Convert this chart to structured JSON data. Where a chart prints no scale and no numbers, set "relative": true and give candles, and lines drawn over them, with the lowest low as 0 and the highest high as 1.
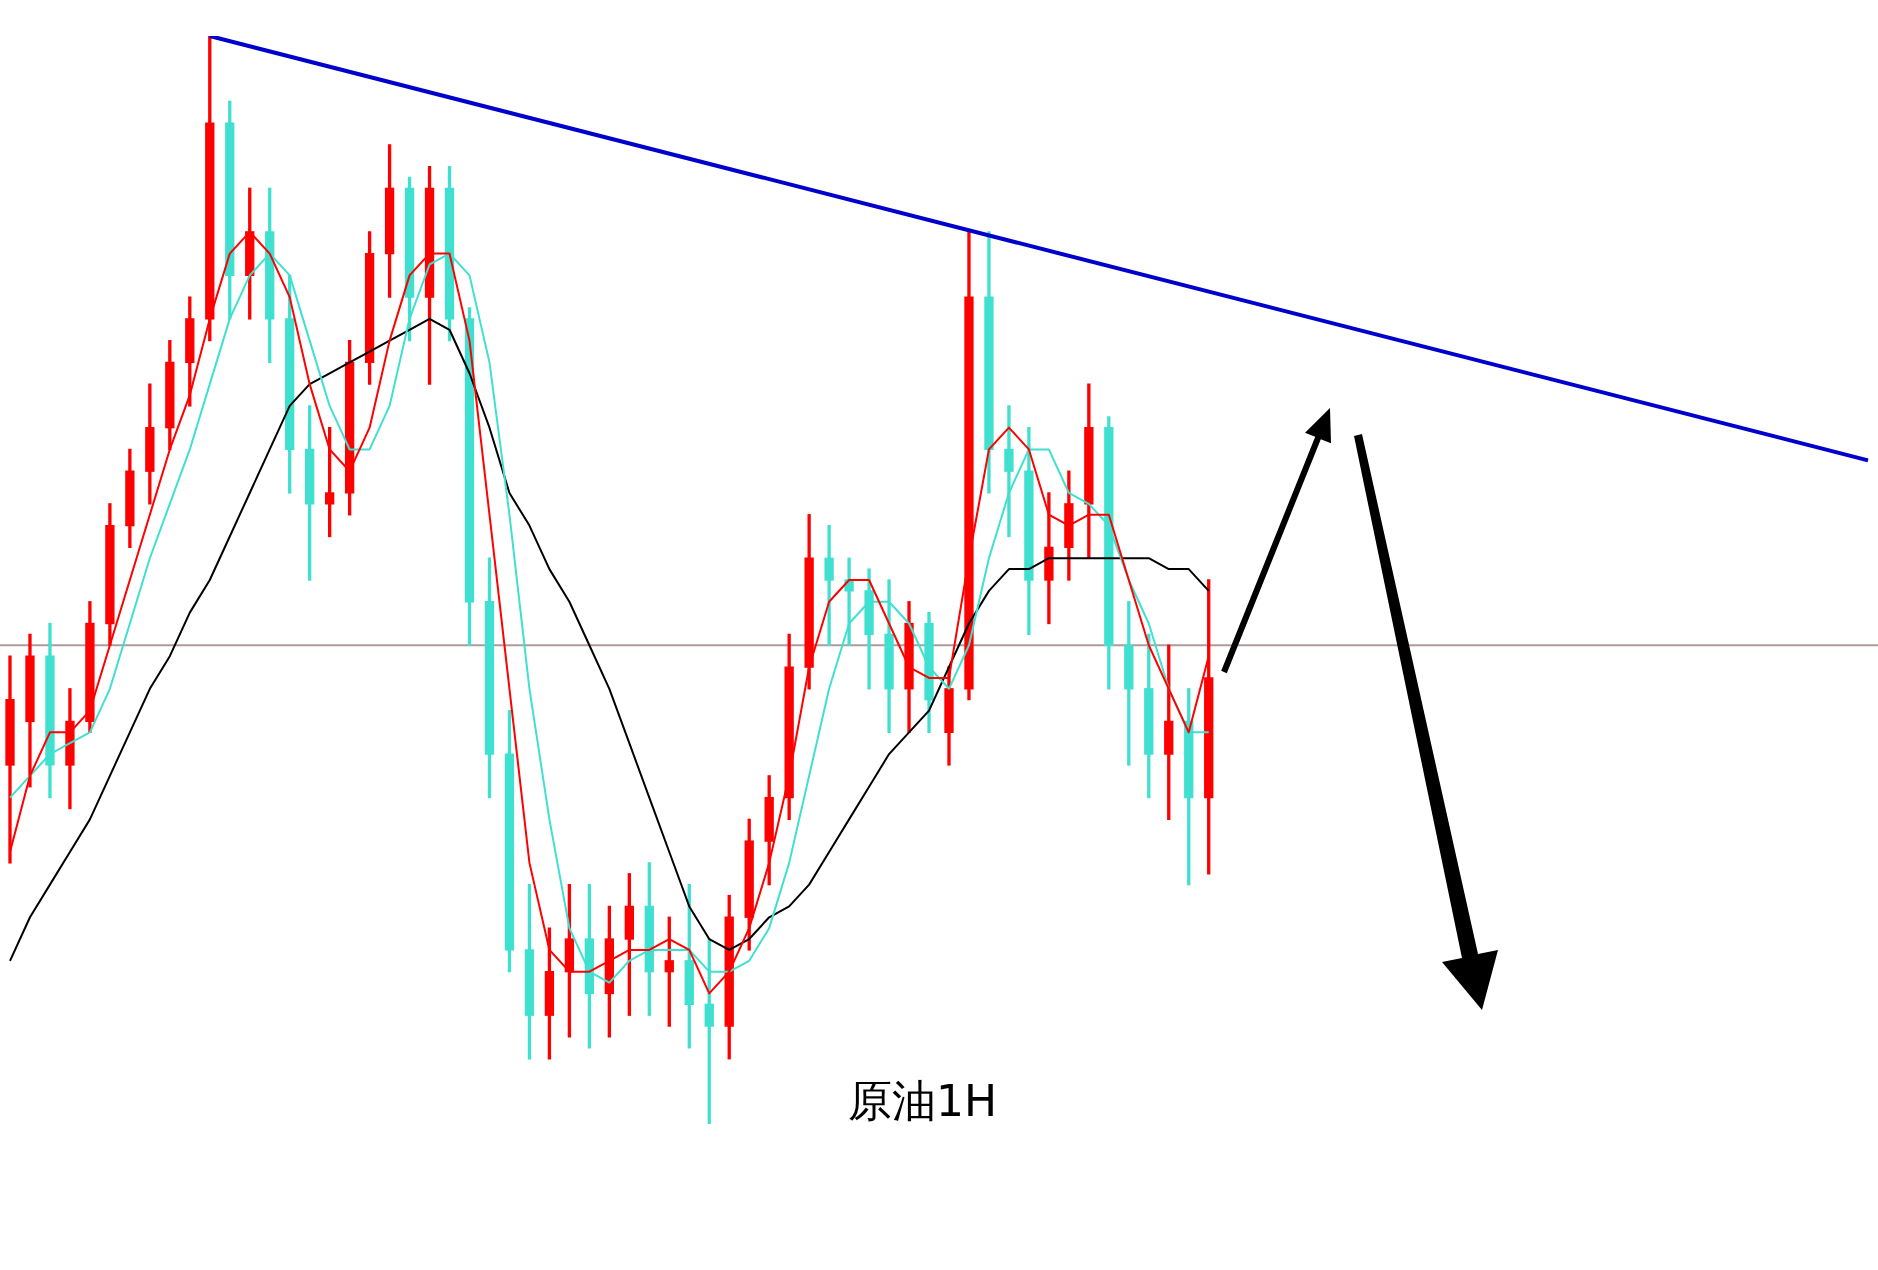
{
  "chart_data": {
    "type": "candlestick",
    "relative": true,
    "title": "原油1H",
    "legend": false,
    "categories": [
      null,
      null,
      null,
      null,
      null,
      null,
      null,
      null,
      null,
      null,
      null,
      null,
      null,
      null,
      null,
      null,
      null,
      null,
      null,
      null,
      null,
      null,
      null,
      null,
      null,
      null,
      null,
      null,
      null,
      null,
      null,
      null,
      null,
      null,
      null,
      null,
      null,
      null,
      null,
      null,
      null,
      null,
      null,
      null,
      null,
      null,
      null,
      null,
      null,
      null,
      null,
      null,
      null,
      null,
      null,
      null,
      null,
      null,
      null,
      null,
      null,
      null,
      null,
      null,
      null,
      null,
      null,
      null,
      null,
      null,
      null,
      null,
      null,
      null,
      null,
      null,
      null,
      null,
      null,
      null,
      null,
      null,
      null,
      null,
      null,
      null,
      null,
      null,
      null,
      null,
      null,
      null,
      null,
      null
    ],
    "ohlc": [
      [
        0.33,
        0.43,
        0.24,
        0.39
      ],
      [
        0.37,
        0.45,
        0.31,
        0.43
      ],
      [
        0.43,
        0.46,
        0.3,
        0.33
      ],
      [
        0.33,
        0.4,
        0.29,
        0.37
      ],
      [
        0.37,
        0.48,
        0.36,
        0.46
      ],
      [
        0.46,
        0.57,
        0.44,
        0.55
      ],
      [
        0.55,
        0.62,
        0.53,
        0.6
      ],
      [
        0.6,
        0.68,
        0.57,
        0.64
      ],
      [
        0.64,
        0.72,
        0.62,
        0.7
      ],
      [
        0.7,
        0.76,
        0.66,
        0.74
      ],
      [
        0.74,
        1.0,
        0.72,
        0.92
      ],
      [
        0.92,
        0.94,
        0.74,
        0.78
      ],
      [
        0.78,
        0.86,
        0.74,
        0.82
      ],
      [
        0.82,
        0.86,
        0.7,
        0.74
      ],
      [
        0.74,
        0.78,
        0.58,
        0.62
      ],
      [
        0.62,
        0.66,
        0.5,
        0.57
      ],
      [
        0.57,
        0.64,
        0.54,
        0.58
      ],
      [
        0.58,
        0.72,
        0.56,
        0.7
      ],
      [
        0.7,
        0.82,
        0.68,
        0.8
      ],
      [
        0.8,
        0.9,
        0.76,
        0.86
      ],
      [
        0.86,
        0.87,
        0.72,
        0.76
      ],
      [
        0.76,
        0.88,
        0.68,
        0.86
      ],
      [
        0.86,
        0.88,
        0.72,
        0.74
      ],
      [
        0.74,
        0.75,
        0.44,
        0.48
      ],
      [
        0.48,
        0.52,
        0.3,
        0.34
      ],
      [
        0.34,
        0.38,
        0.14,
        0.16
      ],
      [
        0.16,
        0.22,
        0.06,
        0.1
      ],
      [
        0.1,
        0.18,
        0.06,
        0.14
      ],
      [
        0.14,
        0.22,
        0.08,
        0.17
      ],
      [
        0.17,
        0.22,
        0.07,
        0.12
      ],
      [
        0.12,
        0.2,
        0.08,
        0.17
      ],
      [
        0.17,
        0.23,
        0.1,
        0.2
      ],
      [
        0.2,
        0.24,
        0.1,
        0.14
      ],
      [
        0.14,
        0.19,
        0.09,
        0.15
      ],
      [
        0.15,
        0.22,
        0.07,
        0.11
      ],
      [
        0.11,
        0.17,
        0.0,
        0.09
      ],
      [
        0.09,
        0.21,
        0.06,
        0.19
      ],
      [
        0.19,
        0.28,
        0.16,
        0.26
      ],
      [
        0.26,
        0.32,
        0.22,
        0.3
      ],
      [
        0.3,
        0.45,
        0.28,
        0.42
      ],
      [
        0.42,
        0.56,
        0.4,
        0.52
      ],
      [
        0.52,
        0.55,
        0.44,
        0.5
      ],
      [
        0.5,
        0.52,
        0.44,
        0.49
      ],
      [
        0.49,
        0.51,
        0.4,
        0.45
      ],
      [
        0.45,
        0.5,
        0.36,
        0.4
      ],
      [
        0.4,
        0.48,
        0.36,
        0.46
      ],
      [
        0.46,
        0.47,
        0.36,
        0.39
      ],
      [
        0.36,
        0.42,
        0.33,
        0.4
      ],
      [
        0.4,
        0.82,
        0.39,
        0.76
      ],
      [
        0.76,
        0.82,
        0.58,
        0.62
      ],
      [
        0.62,
        0.66,
        0.54,
        0.6
      ],
      [
        0.6,
        0.64,
        0.45,
        0.5
      ],
      [
        0.5,
        0.58,
        0.46,
        0.53
      ],
      [
        0.53,
        0.6,
        0.5,
        0.57
      ],
      [
        0.57,
        0.68,
        0.52,
        0.64
      ],
      [
        0.64,
        0.65,
        0.4,
        0.44
      ],
      [
        0.44,
        0.48,
        0.33,
        0.4
      ],
      [
        0.4,
        0.45,
        0.3,
        0.34
      ],
      [
        0.34,
        0.44,
        0.28,
        0.37
      ],
      [
        0.37,
        0.4,
        0.22,
        0.3
      ],
      [
        0.3,
        0.5,
        0.23,
        0.41
      ],
      null,
      null,
      null,
      null,
      null,
      null,
      null,
      null,
      null,
      null,
      null,
      null,
      null,
      null,
      null,
      null,
      null,
      null,
      null,
      null,
      null,
      null,
      null,
      null,
      null,
      null,
      null,
      null,
      null,
      null,
      null,
      null,
      null
    ],
    "colors": [
      "#ff0000",
      "#ff0000",
      "#40e0d0",
      "#ff0000",
      "#ff0000",
      "#ff0000",
      "#ff0000",
      "#ff0000",
      "#ff0000",
      "#ff0000",
      "#ff0000",
      "#40e0d0",
      "#ff0000",
      "#40e0d0",
      "#40e0d0",
      "#40e0d0",
      "#ff0000",
      "#ff0000",
      "#ff0000",
      "#ff0000",
      "#40e0d0",
      "#ff0000",
      "#40e0d0",
      "#40e0d0",
      "#40e0d0",
      "#40e0d0",
      "#40e0d0",
      "#ff0000",
      "#ff0000",
      "#40e0d0",
      "#ff0000",
      "#ff0000",
      "#40e0d0",
      "#ff0000",
      "#40e0d0",
      "#40e0d0",
      "#ff0000",
      "#ff0000",
      "#ff0000",
      "#ff0000",
      "#ff0000",
      "#40e0d0",
      "#40e0d0",
      "#40e0d0",
      "#40e0d0",
      "#ff0000",
      "#40e0d0",
      "#ff0000",
      "#ff0000",
      "#40e0d0",
      "#40e0d0",
      "#40e0d0",
      "#ff0000",
      "#ff0000",
      "#ff0000",
      "#40e0d0",
      "#40e0d0",
      "#40e0d0",
      "#ff0000",
      "#40e0d0",
      "#ff0000",
      null,
      null,
      null,
      null,
      null,
      null,
      null,
      null,
      null,
      null,
      null,
      null,
      null,
      null,
      null,
      null,
      null,
      null,
      null,
      null,
      null,
      null,
      null,
      null,
      null,
      null,
      null,
      null,
      null,
      null,
      null,
      null,
      null
    ],
    "series": [
      {
        "type": "line",
        "color": "#ff0000",
        "values": [
          0.25,
          0.32,
          0.36,
          0.36,
          0.38,
          0.44,
          0.5,
          0.56,
          0.62,
          0.67,
          0.74,
          0.8,
          0.82,
          0.8,
          0.76,
          0.68,
          0.62,
          0.6,
          0.64,
          0.72,
          0.78,
          0.8,
          0.8,
          0.72,
          0.56,
          0.4,
          0.24,
          0.16,
          0.14,
          0.14,
          0.15,
          0.16,
          0.16,
          0.17,
          0.16,
          0.12,
          0.14,
          0.18,
          0.24,
          0.32,
          0.42,
          0.48,
          0.5,
          0.5,
          0.46,
          0.42,
          0.41,
          0.41,
          0.52,
          0.62,
          0.64,
          0.62,
          0.56,
          0.55,
          0.56,
          0.56,
          0.5,
          0.44,
          0.4,
          0.36,
          0.43,
          null,
          null,
          null,
          null,
          null,
          null,
          null,
          null,
          null,
          null,
          null,
          null,
          null,
          null,
          null,
          null,
          null,
          null,
          null,
          null,
          null,
          null,
          null,
          null,
          null,
          null,
          null,
          null,
          null,
          null,
          null,
          null,
          null
        ]
      },
      {
        "type": "line",
        "color": "#40e0d0",
        "values": [
          0.3,
          0.32,
          0.34,
          0.35,
          0.36,
          0.4,
          0.46,
          0.52,
          0.57,
          0.62,
          0.68,
          0.74,
          0.78,
          0.8,
          0.78,
          0.72,
          0.66,
          0.62,
          0.62,
          0.66,
          0.74,
          0.79,
          0.8,
          0.78,
          0.7,
          0.56,
          0.4,
          0.28,
          0.18,
          0.14,
          0.13,
          0.15,
          0.16,
          0.16,
          0.16,
          0.14,
          0.14,
          0.15,
          0.18,
          0.24,
          0.32,
          0.4,
          0.46,
          0.48,
          0.48,
          0.46,
          0.42,
          0.4,
          0.44,
          0.52,
          0.58,
          0.62,
          0.62,
          0.58,
          0.57,
          0.55,
          0.5,
          0.46,
          0.4,
          0.36,
          0.36,
          null,
          null,
          null,
          null,
          null,
          null,
          null,
          null,
          null,
          null,
          null,
          null,
          null,
          null,
          null,
          null,
          null,
          null,
          null,
          null,
          null,
          null,
          null,
          null,
          null,
          null,
          null,
          null,
          null,
          null,
          null,
          null,
          null
        ]
      },
      {
        "type": "line",
        "color": "#000000",
        "values": [
          0.15,
          0.19,
          0.22,
          0.25,
          0.28,
          0.32,
          0.36,
          0.4,
          0.43,
          0.47,
          0.5,
          0.54,
          0.58,
          0.62,
          0.66,
          0.68,
          0.69,
          0.7,
          0.71,
          0.72,
          0.73,
          0.74,
          0.73,
          0.69,
          0.64,
          0.58,
          0.55,
          0.51,
          0.48,
          0.44,
          0.4,
          0.35,
          0.3,
          0.25,
          0.2,
          0.17,
          0.16,
          0.17,
          0.19,
          0.2,
          0.22,
          0.25,
          0.28,
          0.31,
          0.34,
          0.36,
          0.38,
          0.42,
          0.46,
          0.49,
          0.51,
          0.51,
          0.52,
          0.52,
          0.52,
          0.52,
          0.52,
          0.52,
          0.51,
          0.51,
          0.49,
          null,
          null,
          null,
          null,
          null,
          null,
          null,
          null,
          null,
          null,
          null,
          null,
          null,
          null,
          null,
          null,
          null,
          null,
          null,
          null,
          null,
          null,
          null,
          null,
          null,
          null,
          null,
          null,
          null,
          null,
          null,
          null,
          null
        ]
      },
      {
        "type": "line",
        "color": "#0000cc",
        "values": [
          null,
          null,
          null,
          null,
          null,
          null,
          null,
          null,
          null,
          null,
          1.0,
          null,
          null,
          null,
          null,
          null,
          null,
          null,
          null,
          null,
          null,
          null,
          null,
          null,
          null,
          null,
          null,
          null,
          null,
          null,
          null,
          null,
          null,
          null,
          null,
          null,
          null,
          null,
          null,
          null,
          null,
          null,
          null,
          null,
          null,
          null,
          null,
          null,
          null,
          null,
          null,
          null,
          null,
          null,
          null,
          null,
          null,
          null,
          null,
          null,
          null,
          null,
          null,
          null,
          null,
          null,
          null,
          null,
          null,
          null,
          null,
          null,
          null,
          null,
          null,
          null,
          null,
          null,
          null,
          null,
          null,
          null,
          null,
          null,
          null,
          null,
          null,
          null,
          null,
          null,
          null,
          null,
          null,
          0.61
        ]
      }
    ],
    "ref_lines": [
      {
        "axis": "y",
        "value": 0.44,
        "color": "#b09a9a"
      }
    ]
  }
}
